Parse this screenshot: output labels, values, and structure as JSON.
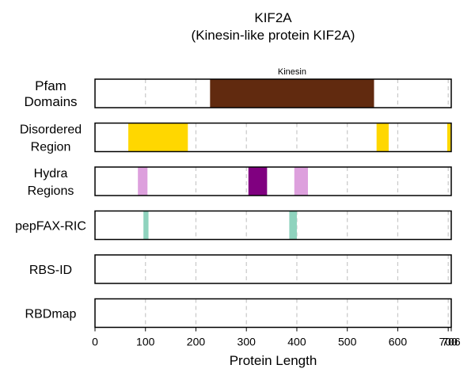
{
  "chart_data": {
    "type": "track",
    "title": "KIF2A",
    "subtitle": "(Kinesin-like protein KIF2A)",
    "xlabel": "Protein Length",
    "xlim": [
      0,
      706
    ],
    "xticks": [
      0,
      100,
      200,
      300,
      400,
      500,
      600,
      700
    ],
    "extra_tick": 706,
    "grid": "dashed vertical at ticks",
    "tracks": [
      {
        "name": "Pfam\nDomains",
        "features": [
          {
            "start": 228,
            "end": 553,
            "color": "#612a0f",
            "label": "Kinesin"
          }
        ]
      },
      {
        "name": "Disordered\nRegion",
        "features": [
          {
            "start": 66,
            "end": 184,
            "color": "#ffd700"
          },
          {
            "start": 558,
            "end": 582,
            "color": "#ffd700"
          },
          {
            "start": 698,
            "end": 706,
            "color": "#ffd700"
          }
        ]
      },
      {
        "name": "Hydra\nRegions",
        "features": [
          {
            "start": 85,
            "end": 104,
            "color": "#dda0dd"
          },
          {
            "start": 304,
            "end": 341,
            "color": "#800080"
          },
          {
            "start": 395,
            "end": 422,
            "color": "#dda0dd"
          }
        ]
      },
      {
        "name": "pepFAX-RIC",
        "features": [
          {
            "start": 96,
            "end": 106,
            "color": "#8fd3be"
          },
          {
            "start": 385,
            "end": 400,
            "color": "#8fd3be"
          }
        ]
      },
      {
        "name": "RBS-ID",
        "features": []
      },
      {
        "name": "RBDmap",
        "features": []
      }
    ]
  }
}
